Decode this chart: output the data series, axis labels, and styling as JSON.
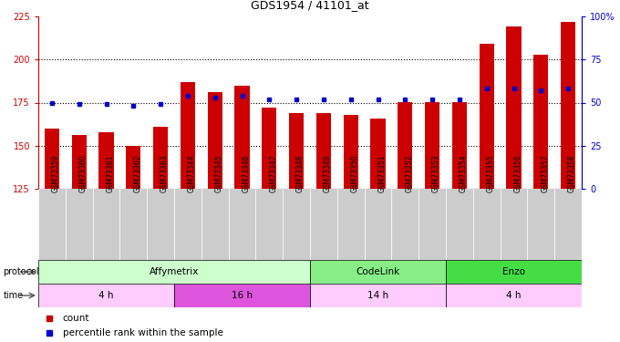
{
  "title": "GDS1954 / 41101_at",
  "samples": [
    "GSM73359",
    "GSM73360",
    "GSM73361",
    "GSM73362",
    "GSM73363",
    "GSM73344",
    "GSM73345",
    "GSM73346",
    "GSM73347",
    "GSM73348",
    "GSM73349",
    "GSM73350",
    "GSM73351",
    "GSM73352",
    "GSM73353",
    "GSM73354",
    "GSM73355",
    "GSM73356",
    "GSM73357",
    "GSM73358"
  ],
  "count_values": [
    160,
    156,
    158,
    150,
    161,
    187,
    181,
    185,
    172,
    169,
    169,
    168,
    166,
    175,
    175,
    175,
    209,
    219,
    203,
    222
  ],
  "percentile_values": [
    50,
    49,
    49,
    48,
    49,
    54,
    53,
    54,
    52,
    52,
    52,
    52,
    52,
    52,
    52,
    52,
    58,
    58,
    57,
    58
  ],
  "ylim_left": [
    125,
    225
  ],
  "ylim_right": [
    0,
    100
  ],
  "yticks_left": [
    125,
    150,
    175,
    200,
    225
  ],
  "yticks_right": [
    0,
    25,
    50,
    75,
    100
  ],
  "bar_color": "#cc0000",
  "dot_color": "#0000cc",
  "protocol_groups": [
    {
      "label": "Affymetrix",
      "start": 0,
      "end": 9,
      "color": "#ccffcc"
    },
    {
      "label": "CodeLink",
      "start": 10,
      "end": 14,
      "color": "#88ee88"
    },
    {
      "label": "Enzo",
      "start": 15,
      "end": 19,
      "color": "#44dd44"
    }
  ],
  "time_groups": [
    {
      "label": "4 h",
      "start": 0,
      "end": 4,
      "color": "#ffccff"
    },
    {
      "label": "16 h",
      "start": 5,
      "end": 9,
      "color": "#dd55dd"
    },
    {
      "label": "14 h",
      "start": 10,
      "end": 14,
      "color": "#ffccff"
    },
    {
      "label": "4 h",
      "start": 15,
      "end": 19,
      "color": "#ffccff"
    }
  ],
  "legend_items": [
    {
      "label": "count",
      "color": "#cc0000"
    },
    {
      "label": "percentile rank within the sample",
      "color": "#0000cc"
    }
  ],
  "grid_yticks": [
    150,
    175,
    200
  ],
  "xlabel_bg": "#cccccc",
  "xlabel_fontsize": 5.5,
  "bar_width": 0.55
}
